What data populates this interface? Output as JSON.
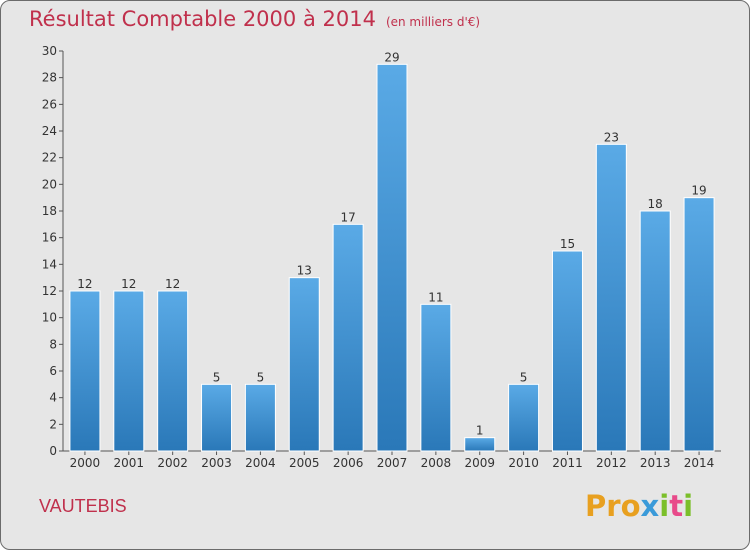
{
  "chart_data": {
    "type": "bar",
    "title": "Résultat Comptable 2000 à 2014",
    "subtitle": "(en milliers d'€)",
    "categories": [
      "2000",
      "2001",
      "2002",
      "2003",
      "2004",
      "2005",
      "2006",
      "2007",
      "2008",
      "2009",
      "2010",
      "2011",
      "2012",
      "2013",
      "2014"
    ],
    "values": [
      12,
      12,
      12,
      5,
      5,
      13,
      17,
      29,
      11,
      1,
      5,
      15,
      23,
      18,
      19
    ],
    "ylim": [
      0,
      30
    ],
    "yticks": [
      0,
      2,
      4,
      6,
      8,
      10,
      12,
      14,
      16,
      18,
      20,
      22,
      24,
      26,
      28,
      30
    ],
    "xlabel": "",
    "ylabel": "",
    "grid": false
  },
  "footer": {
    "commune": "VAUTEBIS",
    "brand": "Proxiti"
  },
  "colors": {
    "title": "#c0304c",
    "bar_top": "#5aaae6",
    "bar_bottom": "#2a78b8",
    "background": "#e6e6e6",
    "brand_letters": [
      "#e8a020",
      "#e8a020",
      "#e8a020",
      "#3a9ad9",
      "#7bbf2a",
      "#e84a8a",
      "#7bbf2a"
    ]
  }
}
